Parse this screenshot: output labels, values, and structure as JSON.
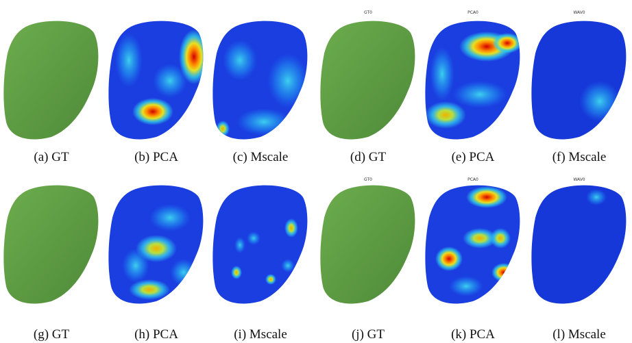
{
  "panels": [
    {
      "caption": "(a) GT"
    },
    {
      "caption": "(b) PCA"
    },
    {
      "caption": "(c) Mscale"
    },
    {
      "caption": "(d) GT",
      "label": "GT0"
    },
    {
      "caption": "(e) PCA",
      "label": "PCA0"
    },
    {
      "caption": "(f) Mscale",
      "label": "WAV0"
    },
    {
      "caption": "(g) GT"
    },
    {
      "caption": "(h) PCA"
    },
    {
      "caption": "(i) Mscale"
    },
    {
      "caption": "(j) GT",
      "label": "GT0"
    },
    {
      "caption": "(k) PCA",
      "label": "PCA0"
    },
    {
      "caption": "(l) Mscale",
      "label": "WAV0"
    }
  ]
}
